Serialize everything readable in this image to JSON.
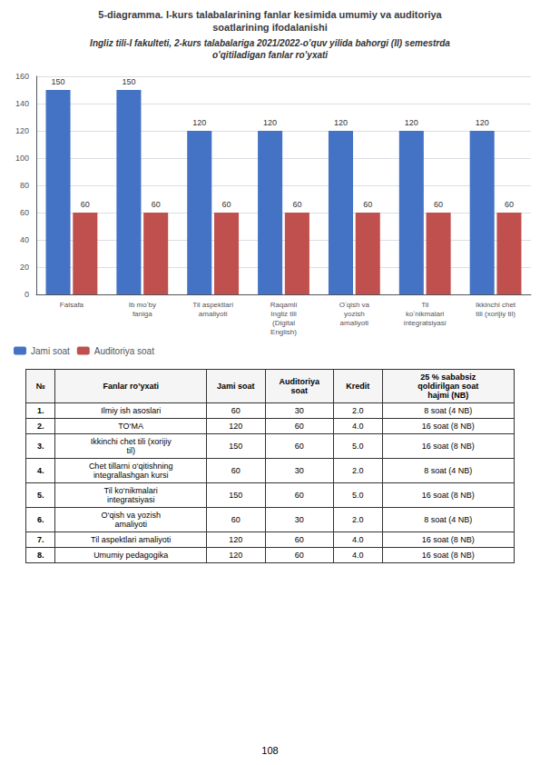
{
  "chart_data": {
    "type": "bar",
    "title": "5-diagramma. I-kurs talabalarining fanlar kesimida umumiy va auditoriya\nsoatlarining ifodalanishi",
    "subtitle": "Ingliz tili-I fakulteti, 2-kurs talabalariga 2021/2022-o’quv yilida bahorgi (II) semestrda\no’qitiladigan fanlar ro’yxati",
    "categories": [
      "Falsafa",
      "Ib moʻby\nfaniga",
      "Til aspektlari\namaliyoti",
      "Raqamli\nIngliz tili\n(Digital\nEnglish)",
      "Oʻqish va\nyozish\namaliyoti",
      "Til\nkoʻnikmalari\nintegratsiyasi",
      "Ikkinchi chet\ntili (xorijiy til)"
    ],
    "series": [
      {
        "name": "Jami soat",
        "color": "#4472C4",
        "values": [
          150,
          150,
          120,
          120,
          120,
          120,
          120
        ]
      },
      {
        "name": "Auditoriya soat",
        "color": "#C0504D",
        "values": [
          60,
          60,
          60,
          60,
          60,
          60,
          60
        ]
      }
    ],
    "ylim": [
      0,
      160
    ],
    "yticks": [
      0,
      20,
      40,
      60,
      80,
      100,
      120,
      140,
      160
    ],
    "grid": true,
    "legend": "lower left",
    "data_labels": true
  },
  "table": {
    "headers": [
      "№",
      "Fanlar ro’yxati",
      "Jami soat",
      "Auditoriya\nsoat",
      "Kredit",
      "25 % sababsiz\nqoldirilgan soat\nhajmi (NB)"
    ],
    "rows": [
      [
        "1.",
        "Ilmiy ish asoslari",
        "60",
        "30",
        "2.0",
        "8 soat (4 NB)"
      ],
      [
        "2.",
        "TO‘MA",
        "120",
        "60",
        "4.0",
        "16 soat (8 NB)"
      ],
      [
        "3.",
        "Ikkinchi chet tili (xorijiy\ntil)",
        "150",
        "60",
        "5.0",
        "16 soat (8 NB)"
      ],
      [
        "4.",
        "Chet tillarni o‘qitishning\nintegrallashgan kursi",
        "60",
        "30",
        "2.0",
        "8 soat (4 NB)"
      ],
      [
        "5.",
        "Til ko‘nikmalari\nintegratsiyasi",
        "150",
        "60",
        "5.0",
        "16 soat (8 NB)"
      ],
      [
        "6.",
        "O‘qish va yozish\namaliyoti",
        "60",
        "30",
        "2.0",
        "8 soat (4 NB)"
      ],
      [
        "7.",
        "Til aspektlari amaliyoti",
        "120",
        "60",
        "4.0",
        "16 soat (8 NB)"
      ],
      [
        "8.",
        "Umumiy pedagogika",
        "120",
        "60",
        "4.0",
        "16 soat (8 NB)"
      ]
    ]
  },
  "page_number": "108"
}
